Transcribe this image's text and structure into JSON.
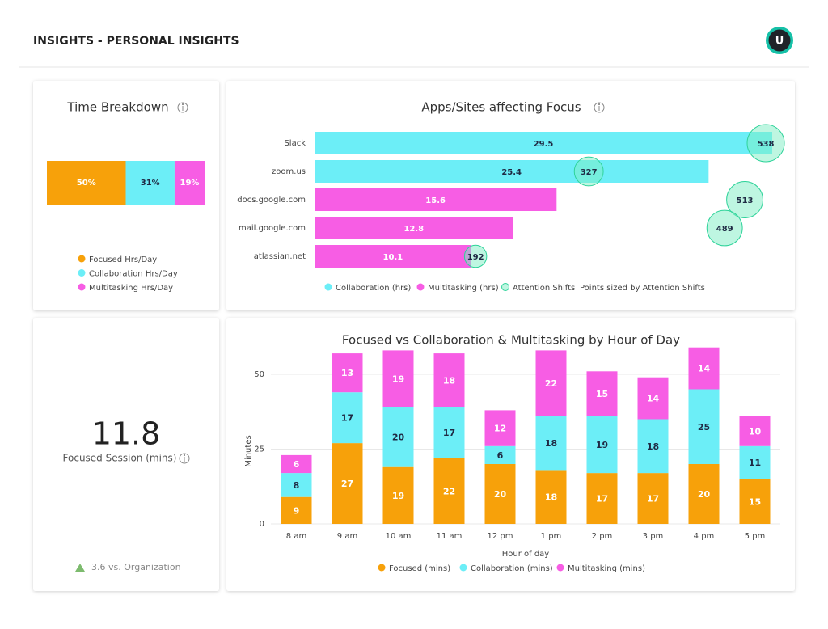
{
  "header": {
    "title": "INSIGHTS - PERSONAL INSIGHTS",
    "avatar": "U"
  },
  "kpi": {
    "value": 11.8,
    "label": "Focused Session (mins)",
    "comparison": "3.6 vs. Organization"
  },
  "chart_data": [
    {
      "type": "hbar100",
      "title": "Time Breakdown",
      "series": [
        {
          "name": "Focused Hrs/Day",
          "color": "#f7a10a",
          "label_color": "#ffffff",
          "values": [
            50
          ],
          "value_labels": [
            "50%"
          ]
        },
        {
          "name": "Collaboration Hrs/Day",
          "color": "#6ceef7",
          "label_color": "#1f2a44",
          "values": [
            31
          ],
          "value_labels": [
            "31%"
          ]
        },
        {
          "name": "Multitasking Hrs/Day",
          "color": "#f75de4",
          "label_color": "#ffffff",
          "values": [
            19
          ],
          "value_labels": [
            "19%"
          ]
        }
      ]
    },
    {
      "type": "hbarbubble",
      "title": "Apps/Sites affecting Focus",
      "categories": [
        "Slack",
        "zoom.us",
        "docs.google.com",
        "mail.google.com",
        "atlassian.net"
      ],
      "series": [
        {
          "name": "Collaboration (hrs)",
          "color": "#6ceef7",
          "label_color": "#1f2a44",
          "values": [
            29.5,
            25.4,
            null,
            null,
            null
          ]
        },
        {
          "name": "Multitasking (hrs)",
          "color": "#f75de4",
          "label_color": "#ffffff",
          "values": [
            null,
            null,
            15.6,
            12.8,
            10.1
          ]
        },
        {
          "name": "Attention Shifts",
          "type": "bubble",
          "color": "#7eeec4",
          "label_color": "#1f2a44",
          "values": [
            538,
            327,
            513,
            489,
            192
          ]
        }
      ],
      "note": "Points sized by Attention Shifts"
    },
    {
      "type": "column",
      "title": "Focused vs Collaboration & Multitasking by Hour of Day",
      "categories": [
        "8 am",
        "9 am",
        "10 am",
        "11 am",
        "12 pm",
        "1 pm",
        "2 pm",
        "3 pm",
        "4 pm",
        "5 pm"
      ],
      "series": [
        {
          "name": "Focused (mins)",
          "color": "#f7a10a",
          "label_color": "#ffffff",
          "values": [
            9,
            27,
            19,
            22,
            20,
            18,
            17,
            17,
            20,
            15
          ]
        },
        {
          "name": "Collaboration (mins)",
          "color": "#6ceef7",
          "label_color": "#1f2a44",
          "values": [
            8,
            17,
            20,
            17,
            6,
            18,
            19,
            18,
            25,
            11
          ]
        },
        {
          "name": "Multitasking (mins)",
          "color": "#f75de4",
          "label_color": "#ffffff",
          "values": [
            6,
            13,
            19,
            18,
            12,
            22,
            15,
            14,
            14,
            10
          ]
        }
      ],
      "xlabel": "Hour of day",
      "ylabel": "Minutes",
      "ylim": [
        0,
        60
      ],
      "yticks": [
        0,
        25,
        50
      ],
      "grid": true
    }
  ]
}
